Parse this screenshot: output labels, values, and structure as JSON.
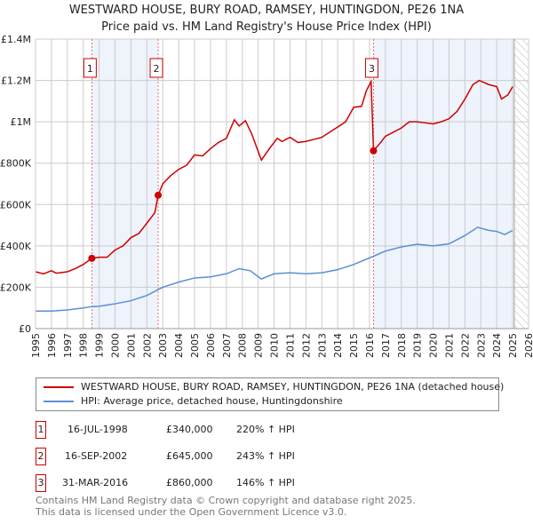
{
  "title": "WESTWARD HOUSE, BURY ROAD, RAMSEY, HUNTINGDON, PE26 1NA",
  "subtitle": "Price paid vs. HM Land Registry's House Price Index (HPI)",
  "colors": {
    "property": "#cc0000",
    "hpi": "#5b8fd6",
    "shade": "#eef3fc"
  },
  "chart_data": {
    "type": "line",
    "xlim": [
      1995,
      2026
    ],
    "ylim": [
      0,
      1400000
    ],
    "yticks": [
      {
        "v": 0,
        "label": "£0"
      },
      {
        "v": 200000,
        "label": "£200K"
      },
      {
        "v": 400000,
        "label": "£400K"
      },
      {
        "v": 600000,
        "label": "£600K"
      },
      {
        "v": 800000,
        "label": "£800K"
      },
      {
        "v": 1000000,
        "label": "£1M"
      },
      {
        "v": 1200000,
        "label": "£1.2M"
      },
      {
        "v": 1400000,
        "label": "£1.4M"
      }
    ],
    "xticks": [
      "1995",
      "1996",
      "1997",
      "1998",
      "1999",
      "2000",
      "2001",
      "2002",
      "2003",
      "2004",
      "2005",
      "2006",
      "2007",
      "2008",
      "2009",
      "2010",
      "2011",
      "2012",
      "2013",
      "2014",
      "2015",
      "2016",
      "2017",
      "2018",
      "2019",
      "2020",
      "2021",
      "2022",
      "2023",
      "2024",
      "2025",
      "2026"
    ],
    "series": [
      {
        "name": "WESTWARD HOUSE, BURY ROAD, RAMSEY, HUNTINGDON, PE26 1NA (detached house)",
        "color": "#cc0000",
        "x": [
          1995,
          1995.5,
          1996,
          1996.3,
          1997,
          1997.5,
          1998,
          1998.54,
          1999,
          1999.5,
          2000,
          2000.5,
          2001,
          2001.5,
          2002,
          2002.5,
          2002.71,
          2003,
          2003.5,
          2004,
          2004.5,
          2005,
          2005.5,
          2006,
          2006.5,
          2007,
          2007.5,
          2007.8,
          2008.2,
          2008.6,
          2009.2,
          2009.7,
          2010.2,
          2010.5,
          2011,
          2011.5,
          2012,
          2012.5,
          2013,
          2013.5,
          2014,
          2014.5,
          2015,
          2015.5,
          2015.8,
          2016.1,
          2016.25,
          2016.7,
          2017,
          2017.5,
          2018,
          2018.5,
          2019,
          2019.5,
          2020,
          2020.5,
          2021,
          2021.5,
          2022,
          2022.5,
          2022.9,
          2023.5,
          2024,
          2024.3,
          2024.7,
          2025
        ],
        "y": [
          275000,
          265000,
          280000,
          268000,
          275000,
          290000,
          310000,
          340000,
          345000,
          345000,
          380000,
          400000,
          440000,
          460000,
          510000,
          560000,
          645000,
          700000,
          740000,
          770000,
          790000,
          840000,
          835000,
          870000,
          900000,
          920000,
          1010000,
          980000,
          1005000,
          940000,
          815000,
          870000,
          920000,
          905000,
          925000,
          900000,
          905000,
          915000,
          925000,
          950000,
          975000,
          1000000,
          1070000,
          1075000,
          1150000,
          1195000,
          860000,
          900000,
          930000,
          950000,
          970000,
          1000000,
          1000000,
          995000,
          990000,
          1000000,
          1015000,
          1050000,
          1110000,
          1180000,
          1200000,
          1180000,
          1170000,
          1110000,
          1130000,
          1170000
        ]
      },
      {
        "name": "HPI: Average price, detached house, Huntingdonshire",
        "color": "#5b8fd6",
        "x": [
          1995,
          1996,
          1997,
          1998,
          1998.5,
          1999,
          2000,
          2001,
          2002,
          2002.7,
          2003,
          2004,
          2005,
          2006,
          2007,
          2007.8,
          2008.5,
          2009.2,
          2010,
          2011,
          2012,
          2013,
          2014,
          2015,
          2016.25,
          2017,
          2018,
          2019,
          2020,
          2021,
          2022,
          2022.8,
          2023.5,
          2024,
          2024.5,
          2025
        ],
        "y": [
          85000,
          85000,
          90000,
          100000,
          106000,
          108000,
          120000,
          135000,
          160000,
          188000,
          200000,
          225000,
          245000,
          250000,
          265000,
          290000,
          280000,
          240000,
          265000,
          270000,
          265000,
          270000,
          285000,
          310000,
          350000,
          375000,
          395000,
          408000,
          400000,
          410000,
          450000,
          490000,
          475000,
          470000,
          455000,
          475000
        ]
      }
    ],
    "sales": [
      {
        "n": "1",
        "x": 1998.54,
        "y": 340000
      },
      {
        "n": "2",
        "x": 2002.71,
        "y": 645000
      },
      {
        "n": "3",
        "x": 2016.25,
        "y": 860000
      }
    ],
    "shaded": [
      [
        1998.54,
        2002.71
      ],
      [
        2016.25,
        2025.0
      ]
    ],
    "hatched_from": 2025.1
  },
  "legend": {
    "property": "WESTWARD HOUSE, BURY ROAD, RAMSEY, HUNTINGDON, PE26 1NA (detached house)",
    "hpi": "HPI: Average price, detached house, Huntingdonshire"
  },
  "transactions": [
    {
      "n": "1",
      "date": "16-JUL-1998",
      "price": "£340,000",
      "hpi": "220% ↑ HPI"
    },
    {
      "n": "2",
      "date": "16-SEP-2002",
      "price": "£645,000",
      "hpi": "243% ↑ HPI"
    },
    {
      "n": "3",
      "date": "31-MAR-2016",
      "price": "£860,000",
      "hpi": "146% ↑ HPI"
    }
  ],
  "footer": {
    "line1": "Contains HM Land Registry data © Crown copyright and database right 2025.",
    "line2": "This data is licensed under the Open Government Licence v3.0."
  }
}
